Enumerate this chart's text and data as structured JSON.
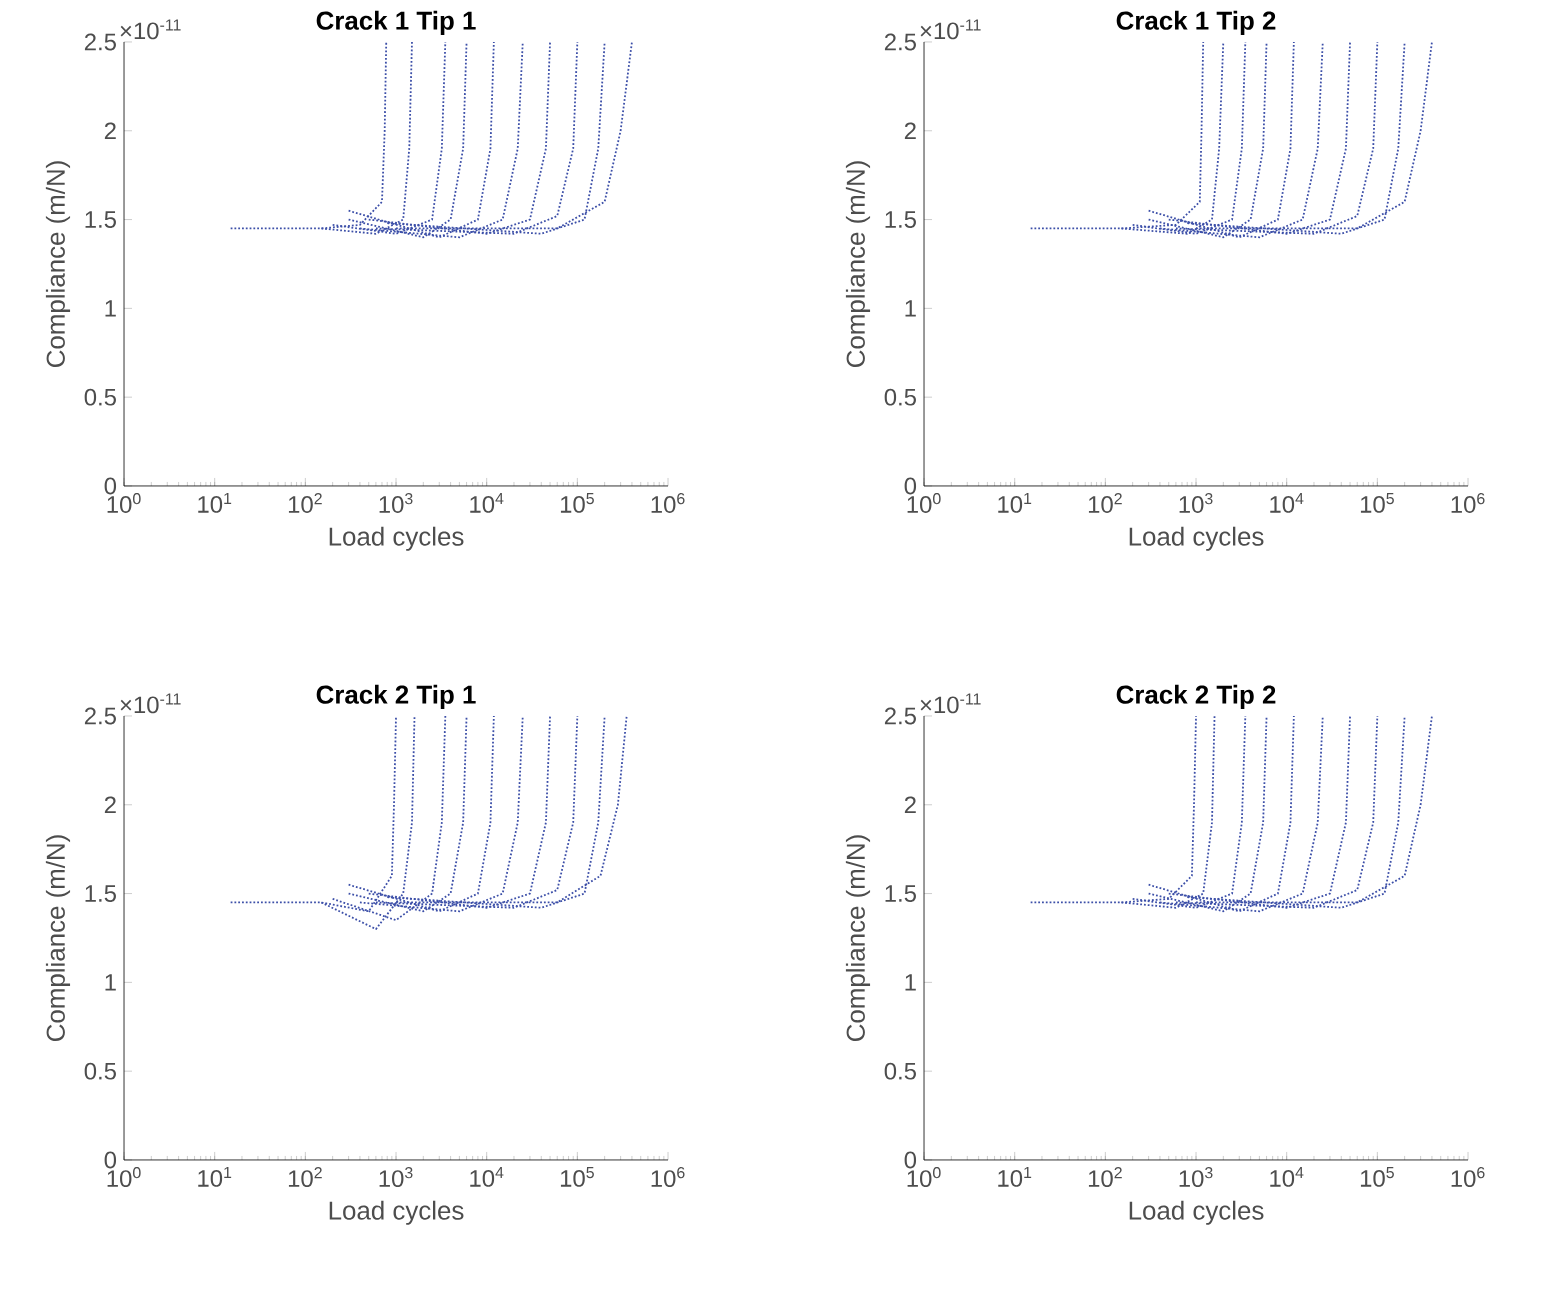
{
  "chart_data": [
    {
      "type": "line",
      "title": "Crack 1 Tip 1",
      "xlabel": "Load cycles",
      "ylabel": "Compliance (m/N)",
      "annotations": [
        "×10$^{-11}$"
      ],
      "log": "x",
      "grid": false,
      "marker": "none",
      "line_style": "dotted",
      "xlim": [
        1,
        1000000
      ],
      "ylim": [
        0,
        2.5
      ],
      "xticks": [
        {
          "value": 1,
          "label": "10$^{0}$"
        },
        {
          "value": 10,
          "label": "10$^{1}$"
        },
        {
          "value": 100,
          "label": "10$^{2}$"
        },
        {
          "value": 1000,
          "label": "10$^{3}$"
        },
        {
          "value": 10000,
          "label": "10$^{4}$"
        },
        {
          "value": 100000,
          "label": "10$^{5}$"
        },
        {
          "value": 1000000,
          "label": "10$^{6}$"
        }
      ],
      "yticks": [
        0,
        0.5,
        1,
        1.5,
        2,
        2.5
      ],
      "series": [
        {
          "color": "#3c4fa8",
          "x": [
            15,
            150,
            400,
            700,
            750,
            780
          ],
          "values": [
            1.45,
            1.45,
            1.47,
            1.6,
            2.0,
            2.5
          ]
        },
        {
          "color": "#3c4fa8",
          "x": [
            150,
            600,
            1200,
            1400,
            1500
          ],
          "values": [
            1.45,
            1.42,
            1.5,
            1.9,
            2.5
          ]
        },
        {
          "color": "#3c4fa8",
          "x": [
            200,
            1000,
            2500,
            3200,
            3500
          ],
          "values": [
            1.47,
            1.42,
            1.5,
            1.9,
            2.5
          ]
        },
        {
          "color": "#3c4fa8",
          "x": [
            300,
            2000,
            4000,
            5500,
            6000
          ],
          "values": [
            1.5,
            1.4,
            1.5,
            1.9,
            2.5
          ]
        },
        {
          "color": "#3c4fa8",
          "x": [
            300,
            3000,
            8000,
            11000,
            12000
          ],
          "values": [
            1.55,
            1.4,
            1.5,
            1.9,
            2.5
          ]
        },
        {
          "color": "#3c4fa8",
          "x": [
            400,
            5000,
            15000,
            22000,
            25000
          ],
          "values": [
            1.45,
            1.4,
            1.5,
            1.9,
            2.5
          ]
        },
        {
          "color": "#3c4fa8",
          "x": [
            500,
            10000,
            30000,
            45000,
            50000
          ],
          "values": [
            1.5,
            1.42,
            1.5,
            1.9,
            2.5
          ]
        },
        {
          "color": "#3c4fa8",
          "x": [
            600,
            20000,
            60000,
            90000,
            100000
          ],
          "values": [
            1.45,
            1.42,
            1.52,
            1.9,
            2.5
          ]
        },
        {
          "color": "#3c4fa8",
          "x": [
            800,
            40000,
            120000,
            170000,
            200000
          ],
          "values": [
            1.48,
            1.42,
            1.5,
            1.9,
            2.5
          ]
        },
        {
          "color": "#3c4fa8",
          "x": [
            1000,
            60000,
            200000,
            300000,
            400000
          ],
          "values": [
            1.45,
            1.45,
            1.6,
            2.0,
            2.5
          ]
        }
      ]
    },
    {
      "type": "line",
      "title": "Crack 1 Tip 2",
      "xlabel": "Load cycles",
      "ylabel": "Compliance (m/N)",
      "annotations": [
        "×10$^{-11}$"
      ],
      "log": "x",
      "grid": false,
      "marker": "none",
      "line_style": "dotted",
      "xlim": [
        1,
        1000000
      ],
      "ylim": [
        0,
        2.5
      ],
      "xticks": [
        {
          "value": 1,
          "label": "10$^{0}$"
        },
        {
          "value": 10,
          "label": "10$^{1}$"
        },
        {
          "value": 100,
          "label": "10$^{2}$"
        },
        {
          "value": 1000,
          "label": "10$^{3}$"
        },
        {
          "value": 10000,
          "label": "10$^{4}$"
        },
        {
          "value": 100000,
          "label": "10$^{5}$"
        },
        {
          "value": 1000000,
          "label": "10$^{6}$"
        }
      ],
      "yticks": [
        0,
        0.5,
        1,
        1.5,
        2,
        2.5
      ],
      "series": [
        {
          "color": "#3c4fa8",
          "x": [
            15,
            150,
            600,
            1100,
            1150,
            1200
          ],
          "values": [
            1.45,
            1.45,
            1.47,
            1.6,
            2.0,
            2.5
          ]
        },
        {
          "color": "#3c4fa8",
          "x": [
            150,
            800,
            1500,
            1800,
            2000
          ],
          "values": [
            1.45,
            1.42,
            1.5,
            1.9,
            2.5
          ]
        },
        {
          "color": "#3c4fa8",
          "x": [
            200,
            1000,
            2500,
            3200,
            3500
          ],
          "values": [
            1.47,
            1.42,
            1.5,
            1.9,
            2.5
          ]
        },
        {
          "color": "#3c4fa8",
          "x": [
            300,
            2000,
            4000,
            5500,
            6000
          ],
          "values": [
            1.5,
            1.4,
            1.5,
            1.9,
            2.5
          ]
        },
        {
          "color": "#3c4fa8",
          "x": [
            300,
            3000,
            8000,
            11000,
            12000
          ],
          "values": [
            1.55,
            1.4,
            1.5,
            1.9,
            2.5
          ]
        },
        {
          "color": "#3c4fa8",
          "x": [
            400,
            5000,
            15000,
            22000,
            25000
          ],
          "values": [
            1.45,
            1.4,
            1.5,
            1.9,
            2.5
          ]
        },
        {
          "color": "#3c4fa8",
          "x": [
            500,
            10000,
            30000,
            45000,
            50000
          ],
          "values": [
            1.5,
            1.42,
            1.5,
            1.9,
            2.5
          ]
        },
        {
          "color": "#3c4fa8",
          "x": [
            600,
            20000,
            60000,
            90000,
            100000
          ],
          "values": [
            1.45,
            1.42,
            1.52,
            1.9,
            2.5
          ]
        },
        {
          "color": "#3c4fa8",
          "x": [
            800,
            40000,
            120000,
            170000,
            200000
          ],
          "values": [
            1.48,
            1.42,
            1.5,
            1.9,
            2.5
          ]
        },
        {
          "color": "#3c4fa8",
          "x": [
            1000,
            60000,
            200000,
            300000,
            400000
          ],
          "values": [
            1.45,
            1.45,
            1.6,
            2.0,
            2.5
          ]
        }
      ]
    },
    {
      "type": "line",
      "title": "Crack 2 Tip 1",
      "xlabel": "Load cycles",
      "ylabel": "Compliance (m/N)",
      "annotations": [
        "×10$^{-11}$"
      ],
      "log": "x",
      "grid": false,
      "marker": "none",
      "line_style": "dotted",
      "xlim": [
        1,
        1000000
      ],
      "ylim": [
        0,
        2.5
      ],
      "xticks": [
        {
          "value": 1,
          "label": "10$^{0}$"
        },
        {
          "value": 10,
          "label": "10$^{1}$"
        },
        {
          "value": 100,
          "label": "10$^{2}$"
        },
        {
          "value": 1000,
          "label": "10$^{3}$"
        },
        {
          "value": 10000,
          "label": "10$^{4}$"
        },
        {
          "value": 100000,
          "label": "10$^{5}$"
        },
        {
          "value": 1000000,
          "label": "10$^{6}$"
        }
      ],
      "yticks": [
        0,
        0.5,
        1,
        1.5,
        2,
        2.5
      ],
      "series": [
        {
          "color": "#3c4fa8",
          "x": [
            15,
            150,
            500,
            900,
            950,
            1000
          ],
          "values": [
            1.45,
            1.45,
            1.4,
            1.6,
            2.0,
            2.5
          ]
        },
        {
          "color": "#3c4fa8",
          "x": [
            150,
            600,
            1200,
            1500,
            1600
          ],
          "values": [
            1.45,
            1.3,
            1.5,
            1.9,
            2.5
          ]
        },
        {
          "color": "#3c4fa8",
          "x": [
            200,
            1000,
            2500,
            3200,
            3500
          ],
          "values": [
            1.47,
            1.35,
            1.5,
            1.9,
            2.5
          ]
        },
        {
          "color": "#3c4fa8",
          "x": [
            300,
            2000,
            4000,
            5500,
            6000
          ],
          "values": [
            1.5,
            1.4,
            1.5,
            1.9,
            2.5
          ]
        },
        {
          "color": "#3c4fa8",
          "x": [
            300,
            3000,
            8000,
            11000,
            12000
          ],
          "values": [
            1.55,
            1.4,
            1.5,
            1.9,
            2.5
          ]
        },
        {
          "color": "#3c4fa8",
          "x": [
            400,
            5000,
            15000,
            22000,
            25000
          ],
          "values": [
            1.45,
            1.4,
            1.5,
            1.9,
            2.5
          ]
        },
        {
          "color": "#3c4fa8",
          "x": [
            500,
            10000,
            30000,
            45000,
            50000
          ],
          "values": [
            1.5,
            1.42,
            1.5,
            1.9,
            2.5
          ]
        },
        {
          "color": "#3c4fa8",
          "x": [
            600,
            20000,
            60000,
            90000,
            100000
          ],
          "values": [
            1.45,
            1.42,
            1.52,
            1.9,
            2.5
          ]
        },
        {
          "color": "#3c4fa8",
          "x": [
            800,
            40000,
            120000,
            170000,
            200000
          ],
          "values": [
            1.48,
            1.42,
            1.5,
            1.9,
            2.5
          ]
        },
        {
          "color": "#3c4fa8",
          "x": [
            1000,
            60000,
            180000,
            280000,
            350000
          ],
          "values": [
            1.45,
            1.45,
            1.6,
            2.0,
            2.5
          ]
        }
      ]
    },
    {
      "type": "line",
      "title": "Crack 2 Tip 2",
      "xlabel": "Load cycles",
      "ylabel": "Compliance (m/N)",
      "annotations": [
        "×10$^{-11}$"
      ],
      "log": "x",
      "grid": false,
      "marker": "none",
      "line_style": "dotted",
      "xlim": [
        1,
        1000000
      ],
      "ylim": [
        0,
        2.5
      ],
      "xticks": [
        {
          "value": 1,
          "label": "10$^{0}$"
        },
        {
          "value": 10,
          "label": "10$^{1}$"
        },
        {
          "value": 100,
          "label": "10$^{2}$"
        },
        {
          "value": 1000,
          "label": "10$^{3}$"
        },
        {
          "value": 10000,
          "label": "10$^{4}$"
        },
        {
          "value": 100000,
          "label": "10$^{5}$"
        },
        {
          "value": 1000000,
          "label": "10$^{6}$"
        }
      ],
      "yticks": [
        0,
        0.5,
        1,
        1.5,
        2,
        2.5
      ],
      "series": [
        {
          "color": "#3c4fa8",
          "x": [
            15,
            150,
            500,
            900,
            950,
            1000
          ],
          "values": [
            1.45,
            1.45,
            1.47,
            1.6,
            2.0,
            2.5
          ]
        },
        {
          "color": "#3c4fa8",
          "x": [
            150,
            600,
            1200,
            1500,
            1600
          ],
          "values": [
            1.45,
            1.42,
            1.5,
            1.9,
            2.5
          ]
        },
        {
          "color": "#3c4fa8",
          "x": [
            200,
            1000,
            2500,
            3200,
            3500
          ],
          "values": [
            1.47,
            1.42,
            1.5,
            1.9,
            2.5
          ]
        },
        {
          "color": "#3c4fa8",
          "x": [
            300,
            2000,
            4000,
            5500,
            6000
          ],
          "values": [
            1.5,
            1.4,
            1.5,
            1.9,
            2.5
          ]
        },
        {
          "color": "#3c4fa8",
          "x": [
            300,
            3000,
            8000,
            11000,
            12000
          ],
          "values": [
            1.55,
            1.4,
            1.5,
            1.9,
            2.5
          ]
        },
        {
          "color": "#3c4fa8",
          "x": [
            400,
            5000,
            15000,
            22000,
            25000
          ],
          "values": [
            1.45,
            1.4,
            1.5,
            1.9,
            2.5
          ]
        },
        {
          "color": "#3c4fa8",
          "x": [
            500,
            10000,
            30000,
            45000,
            50000
          ],
          "values": [
            1.5,
            1.42,
            1.5,
            1.9,
            2.5
          ]
        },
        {
          "color": "#3c4fa8",
          "x": [
            600,
            20000,
            60000,
            90000,
            100000
          ],
          "values": [
            1.45,
            1.42,
            1.52,
            1.9,
            2.5
          ]
        },
        {
          "color": "#3c4fa8",
          "x": [
            800,
            40000,
            120000,
            170000,
            200000
          ],
          "values": [
            1.48,
            1.42,
            1.5,
            1.9,
            2.5
          ]
        },
        {
          "color": "#3c4fa8",
          "x": [
            1000,
            60000,
            200000,
            300000,
            400000
          ],
          "values": [
            1.45,
            1.45,
            1.6,
            2.0,
            2.5
          ]
        }
      ]
    }
  ]
}
